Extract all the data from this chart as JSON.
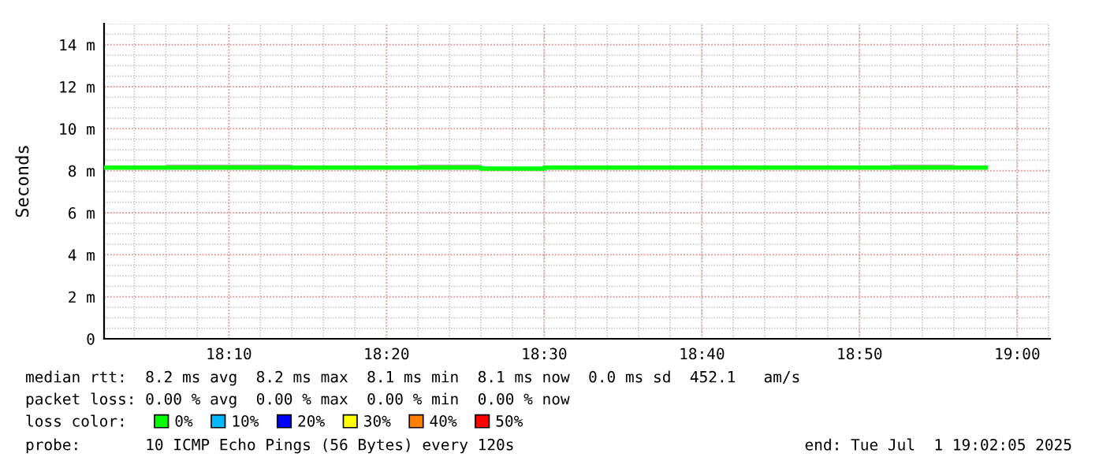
{
  "chart_data": {
    "type": "step",
    "ylabel": "Seconds",
    "x": [
      18.0347,
      18.0667,
      18.1,
      18.1333,
      18.1667,
      18.2,
      18.2333,
      18.2667,
      18.3,
      18.3333,
      18.3667,
      18.4,
      18.4333,
      18.4667,
      18.5,
      18.5333,
      18.5667,
      18.6,
      18.6333,
      18.6667,
      18.7,
      18.7333,
      18.7667,
      18.8,
      18.8333,
      18.8667,
      18.9,
      18.9333,
      18.9667
    ],
    "series": [
      {
        "name": "0%",
        "color": "#00ff00",
        "values": [
          8.15,
          8.15,
          8.15,
          8.15,
          8.15,
          8.15,
          8.15,
          8.15,
          8.15,
          8.15,
          8.15,
          8.15,
          8.1,
          8.1,
          8.15,
          8.15,
          8.15,
          8.15,
          8.15,
          8.15,
          8.15,
          8.15,
          8.15,
          8.15,
          8.15,
          8.15,
          8.15,
          8.15,
          8.15
        ],
        "lower": [
          8.1,
          8.1,
          8.1,
          8.1,
          8.1,
          8.1,
          8.1,
          8.1,
          8.1,
          8.1,
          8.1,
          8.1,
          8.0,
          8.0,
          8.1,
          8.1,
          8.1,
          8.1,
          8.1,
          8.1,
          8.1,
          8.1,
          8.1,
          8.1,
          8.1,
          8.1,
          8.1,
          8.1,
          8.1
        ],
        "upper": [
          8.2,
          8.2,
          8.3,
          8.3,
          8.3,
          8.3,
          8.2,
          8.2,
          8.2,
          8.2,
          8.3,
          8.3,
          8.15,
          8.15,
          8.2,
          8.2,
          8.2,
          8.2,
          8.2,
          8.2,
          8.2,
          8.2,
          8.2,
          8.2,
          8.2,
          8.3,
          8.3,
          8.2,
          8.2
        ]
      },
      {
        "name": "10%",
        "color": "#00b8ff",
        "values": [
          null,
          null,
          null,
          null,
          null,
          null,
          null,
          null,
          null,
          null,
          null,
          null,
          null,
          null,
          null,
          null,
          null,
          null,
          null,
          null,
          null,
          null,
          null,
          null,
          null,
          null,
          null,
          null,
          null
        ]
      },
      {
        "name": "20%",
        "color": "#0000ff",
        "values": [
          null,
          null,
          null,
          null,
          null,
          null,
          null,
          null,
          null,
          null,
          null,
          null,
          null,
          null,
          null,
          null,
          null,
          null,
          null,
          null,
          null,
          null,
          null,
          null,
          null,
          null,
          null,
          null,
          null
        ]
      },
      {
        "name": "30%",
        "color": "#ffff00",
        "values": [
          null,
          null,
          null,
          null,
          null,
          null,
          null,
          null,
          null,
          null,
          null,
          null,
          null,
          null,
          null,
          null,
          null,
          null,
          null,
          null,
          null,
          null,
          null,
          null,
          null,
          null,
          null,
          null,
          null
        ]
      },
      {
        "name": "40%",
        "color": "#ff8000",
        "values": [
          null,
          null,
          null,
          null,
          null,
          null,
          null,
          null,
          null,
          null,
          null,
          null,
          null,
          null,
          null,
          null,
          null,
          null,
          null,
          null,
          null,
          null,
          null,
          null,
          null,
          null,
          null,
          null,
          null
        ]
      },
      {
        "name": "50%",
        "color": "#ff0000",
        "values": [
          null,
          null,
          null,
          null,
          null,
          null,
          null,
          null,
          null,
          null,
          null,
          null,
          null,
          null,
          null,
          null,
          null,
          null,
          null,
          null,
          null,
          null,
          null,
          null,
          null,
          null,
          null,
          null,
          null
        ]
      }
    ],
    "xlim": [
      18.0347,
      19.0347
    ],
    "ylim": [
      0,
      15
    ],
    "xticks": [
      {
        "value": 18.1667,
        "label": "18:10"
      },
      {
        "value": 18.3333,
        "label": "18:20"
      },
      {
        "value": 18.5,
        "label": "18:30"
      },
      {
        "value": 18.6667,
        "label": "18:40"
      },
      {
        "value": 18.8333,
        "label": "18:50"
      },
      {
        "value": 19.0,
        "label": "19:00"
      }
    ],
    "yticks": [
      0,
      {
        "value": 2,
        "label": "2 m"
      },
      {
        "value": 4,
        "label": "4 m"
      },
      {
        "value": 6,
        "label": "6 m"
      },
      {
        "value": 8,
        "label": "8 m"
      },
      {
        "value": 10,
        "label": "10 m"
      },
      {
        "value": 12,
        "label": "12 m"
      },
      {
        "value": 14,
        "label": "14 m"
      }
    ],
    "grid": true,
    "legend": "bottom",
    "annotations": [
      "median rtt:  8.2 ms avg  8.2 ms max  8.1 ms min  8.1 ms now  0.0 ms sd  452.1   am/s",
      "packet loss: 0.00 % avg  0.00 % max  0.00 % min  0.00 % now",
      "loss color:",
      "probe:       10 ICMP Echo Pings (56 Bytes) every 120s",
      "end: Tue Jul  1 19:02:05 2025"
    ]
  }
}
